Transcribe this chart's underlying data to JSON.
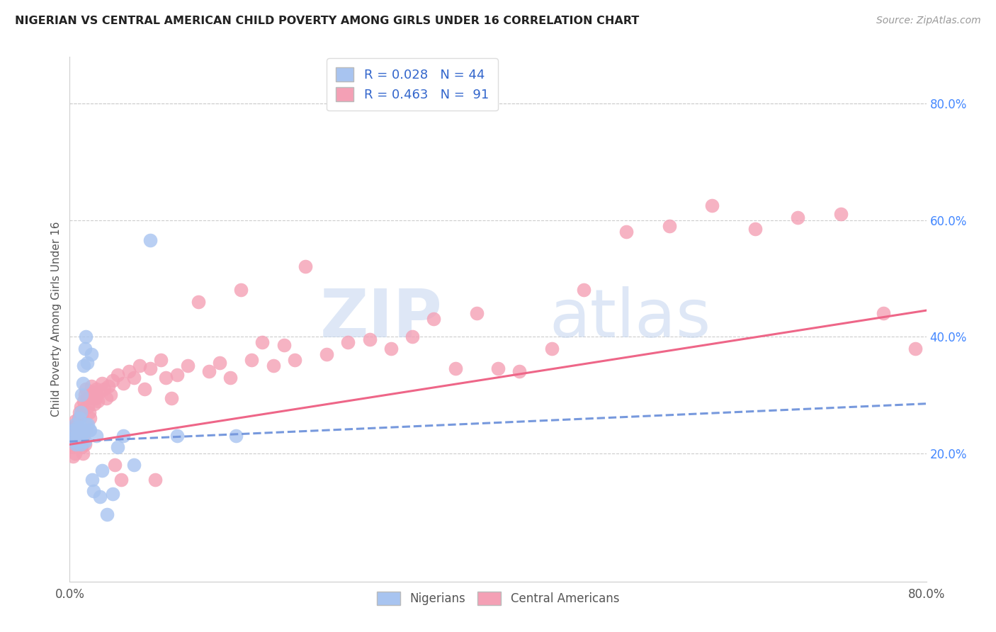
{
  "title": "NIGERIAN VS CENTRAL AMERICAN CHILD POVERTY AMONG GIRLS UNDER 16 CORRELATION CHART",
  "source": "Source: ZipAtlas.com",
  "ylabel": "Child Poverty Among Girls Under 16",
  "right_yticks": [
    "20.0%",
    "40.0%",
    "60.0%",
    "80.0%"
  ],
  "right_ytick_vals": [
    0.2,
    0.4,
    0.6,
    0.8
  ],
  "xlim": [
    0.0,
    0.8
  ],
  "ylim": [
    -0.02,
    0.88
  ],
  "color_nigerian": "#A8C4F0",
  "color_ca": "#F4A0B5",
  "color_nigerian_line": "#7799DD",
  "color_ca_line": "#EE6688",
  "watermark_zip": "ZIP",
  "watermark_atlas": "atlas",
  "legend_r1": "R = 0.028",
  "legend_n1": "N = 44",
  "legend_r2": "R = 0.463",
  "legend_n2": "N =  91",
  "nigerian_x": [
    0.002,
    0.003,
    0.004,
    0.005,
    0.005,
    0.006,
    0.007,
    0.007,
    0.008,
    0.008,
    0.009,
    0.009,
    0.01,
    0.01,
    0.01,
    0.01,
    0.011,
    0.011,
    0.012,
    0.012,
    0.013,
    0.013,
    0.014,
    0.014,
    0.015,
    0.015,
    0.016,
    0.017,
    0.018,
    0.019,
    0.02,
    0.021,
    0.022,
    0.025,
    0.028,
    0.03,
    0.035,
    0.04,
    0.045,
    0.05,
    0.06,
    0.075,
    0.1,
    0.155
  ],
  "nigerian_y": [
    0.235,
    0.225,
    0.24,
    0.22,
    0.25,
    0.215,
    0.23,
    0.245,
    0.22,
    0.235,
    0.26,
    0.225,
    0.27,
    0.245,
    0.225,
    0.215,
    0.3,
    0.22,
    0.32,
    0.235,
    0.35,
    0.24,
    0.38,
    0.22,
    0.4,
    0.25,
    0.355,
    0.25,
    0.24,
    0.24,
    0.37,
    0.155,
    0.135,
    0.23,
    0.125,
    0.17,
    0.095,
    0.13,
    0.21,
    0.23,
    0.18,
    0.565,
    0.23,
    0.23
  ],
  "ca_x": [
    0.002,
    0.003,
    0.003,
    0.004,
    0.004,
    0.005,
    0.005,
    0.006,
    0.006,
    0.007,
    0.007,
    0.008,
    0.008,
    0.009,
    0.009,
    0.01,
    0.01,
    0.011,
    0.011,
    0.012,
    0.012,
    0.013,
    0.013,
    0.014,
    0.014,
    0.015,
    0.015,
    0.016,
    0.017,
    0.018,
    0.019,
    0.02,
    0.021,
    0.022,
    0.023,
    0.024,
    0.025,
    0.026,
    0.028,
    0.03,
    0.032,
    0.034,
    0.036,
    0.038,
    0.04,
    0.042,
    0.045,
    0.048,
    0.05,
    0.055,
    0.06,
    0.065,
    0.07,
    0.075,
    0.08,
    0.085,
    0.09,
    0.095,
    0.1,
    0.11,
    0.12,
    0.13,
    0.14,
    0.15,
    0.16,
    0.17,
    0.18,
    0.19,
    0.2,
    0.21,
    0.22,
    0.24,
    0.26,
    0.28,
    0.3,
    0.32,
    0.34,
    0.36,
    0.38,
    0.4,
    0.42,
    0.45,
    0.48,
    0.52,
    0.56,
    0.6,
    0.64,
    0.68,
    0.72,
    0.76,
    0.79
  ],
  "ca_y": [
    0.22,
    0.235,
    0.195,
    0.245,
    0.21,
    0.255,
    0.2,
    0.24,
    0.215,
    0.25,
    0.225,
    0.26,
    0.215,
    0.27,
    0.23,
    0.28,
    0.22,
    0.265,
    0.21,
    0.275,
    0.2,
    0.29,
    0.23,
    0.3,
    0.215,
    0.31,
    0.24,
    0.295,
    0.28,
    0.27,
    0.26,
    0.315,
    0.295,
    0.305,
    0.285,
    0.295,
    0.31,
    0.29,
    0.305,
    0.32,
    0.31,
    0.295,
    0.315,
    0.3,
    0.325,
    0.18,
    0.335,
    0.155,
    0.32,
    0.34,
    0.33,
    0.35,
    0.31,
    0.345,
    0.155,
    0.36,
    0.33,
    0.295,
    0.335,
    0.35,
    0.46,
    0.34,
    0.355,
    0.33,
    0.48,
    0.36,
    0.39,
    0.35,
    0.385,
    0.36,
    0.52,
    0.37,
    0.39,
    0.395,
    0.38,
    0.4,
    0.43,
    0.345,
    0.44,
    0.345,
    0.34,
    0.38,
    0.48,
    0.58,
    0.59,
    0.625,
    0.585,
    0.605,
    0.61,
    0.44,
    0.38
  ]
}
